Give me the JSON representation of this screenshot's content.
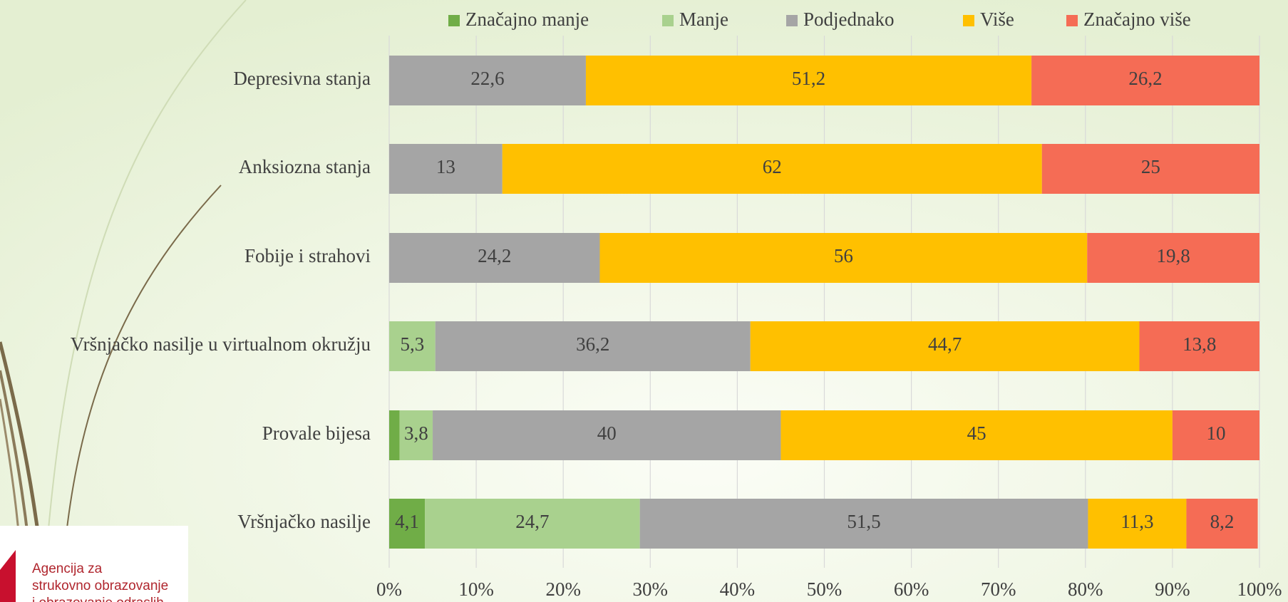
{
  "chart_data": {
    "type": "stacked-bar-horizontal",
    "categories": [
      "Depresivna stanja",
      "Anksiozna stanja",
      "Fobije i strahovi",
      "Vršnjačko nasilje u virtualnom okružju",
      "Provale bijesa",
      "Vršnjačko nasilje"
    ],
    "series": [
      {
        "name": "Značajno manje",
        "color": "#70ad47",
        "values": [
          null,
          null,
          null,
          null,
          1.2,
          4.1
        ],
        "value_labels": [
          null,
          null,
          null,
          null,
          null,
          "4,1"
        ]
      },
      {
        "name": "Manje",
        "color": "#a9d18e",
        "values": [
          null,
          null,
          null,
          5.3,
          3.8,
          24.7
        ],
        "value_labels": [
          null,
          null,
          null,
          "5,3",
          "3,8",
          "24,7"
        ]
      },
      {
        "name": "Podjednako",
        "color": "#a5a5a5",
        "values": [
          22.6,
          13,
          24.2,
          36.2,
          40,
          51.5
        ],
        "value_labels": [
          "22,6",
          "13",
          "24,2",
          "36,2",
          "40",
          "51,5"
        ]
      },
      {
        "name": "Više",
        "color": "#ffc000",
        "values": [
          51.2,
          62,
          56,
          44.7,
          45,
          11.3
        ],
        "value_labels": [
          "51,2",
          "62",
          "56",
          "44,7",
          "45",
          "11,3"
        ]
      },
      {
        "name": "Značajno više",
        "color": "#f56c55",
        "values": [
          26.2,
          25,
          19.8,
          13.8,
          10,
          8.2
        ],
        "value_labels": [
          "26,2",
          "25",
          "19,8",
          "13,8",
          "10",
          "8,2"
        ]
      }
    ],
    "xlim": [
      0,
      100
    ],
    "xticks": [
      {
        "value": 0,
        "label": "0%"
      },
      {
        "value": 10,
        "label": "10%"
      },
      {
        "value": 20,
        "label": "20%"
      },
      {
        "value": 30,
        "label": "30%"
      },
      {
        "value": 40,
        "label": "40%"
      },
      {
        "value": 50,
        "label": "50%"
      },
      {
        "value": 60,
        "label": "60%"
      },
      {
        "value": 70,
        "label": "70%"
      },
      {
        "value": 80,
        "label": "80%"
      },
      {
        "value": 90,
        "label": "90%"
      },
      {
        "value": 100,
        "label": "100%"
      }
    ],
    "grid": true,
    "legend": "top"
  },
  "logo": {
    "lines": [
      "Agencija za",
      "strukovno obrazovanje",
      "i obrazovanje odraslih"
    ]
  }
}
